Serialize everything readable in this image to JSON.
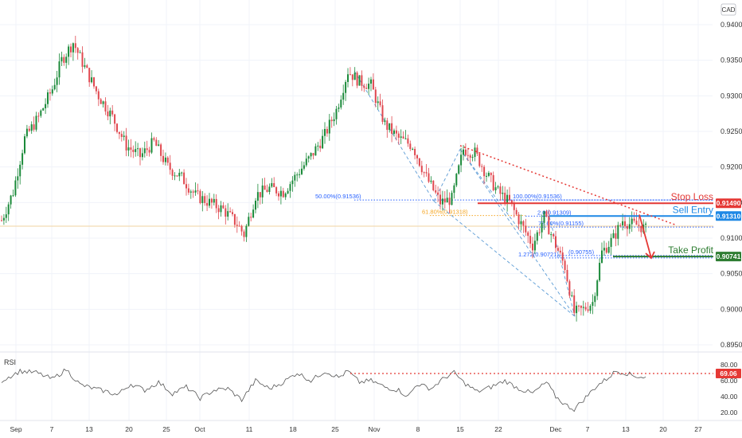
{
  "chart_data": {
    "type": "candlestick",
    "currency": "CAD",
    "ylim": [
      0.895,
      0.942
    ],
    "y_ticks": [
      "0.94000",
      "0.93500",
      "0.93000",
      "0.92500",
      "0.92000",
      "0.91500",
      "0.91000",
      "0.90500",
      "0.90000",
      "0.89500"
    ],
    "x_ticks": [
      "Sep",
      "7",
      "13",
      "20",
      "25",
      "Oct",
      "11",
      "18",
      "25",
      "Nov",
      "8",
      "15",
      "22",
      "Dec",
      "7",
      "13",
      "20",
      "27"
    ],
    "price_path": [
      [
        0,
        0.9125
      ],
      [
        5,
        0.9165
      ],
      [
        10,
        0.924
      ],
      [
        16,
        0.927
      ],
      [
        22,
        0.931
      ],
      [
        26,
        0.935
      ],
      [
        31,
        0.9375
      ],
      [
        36,
        0.934
      ],
      [
        42,
        0.93
      ],
      [
        48,
        0.927
      ],
      [
        54,
        0.923
      ],
      [
        60,
        0.9215
      ],
      [
        66,
        0.9235
      ],
      [
        72,
        0.92
      ],
      [
        78,
        0.9185
      ],
      [
        84,
        0.916
      ],
      [
        90,
        0.915
      ],
      [
        96,
        0.914
      ],
      [
        102,
        0.912
      ],
      [
        105,
        0.9105
      ],
      [
        110,
        0.916
      ],
      [
        116,
        0.917
      ],
      [
        122,
        0.9165
      ],
      [
        128,
        0.919
      ],
      [
        134,
        0.9215
      ],
      [
        140,
        0.9245
      ],
      [
        145,
        0.928
      ],
      [
        150,
        0.9335
      ],
      [
        155,
        0.932
      ],
      [
        160,
        0.9315
      ],
      [
        166,
        0.926
      ],
      [
        172,
        0.924
      ],
      [
        178,
        0.923
      ],
      [
        184,
        0.9185
      ],
      [
        190,
        0.915
      ],
      [
        195,
        0.9155
      ],
      [
        200,
        0.9225
      ],
      [
        205,
        0.922
      ],
      [
        210,
        0.919
      ],
      [
        215,
        0.9165
      ],
      [
        220,
        0.915
      ],
      [
        225,
        0.912
      ],
      [
        230,
        0.909
      ],
      [
        235,
        0.913
      ],
      [
        240,
        0.909
      ],
      [
        244,
        0.906
      ],
      [
        248,
        0.8995
      ],
      [
        252,
        0.9
      ],
      [
        256,
        0.901
      ],
      [
        260,
        0.908
      ],
      [
        265,
        0.91
      ],
      [
        269,
        0.9125
      ],
      [
        272,
        0.912
      ],
      [
        276,
        0.9118
      ],
      [
        279,
        0.9112
      ]
    ],
    "rsi": {
      "label": "RSI",
      "ylim": [
        10,
        90
      ],
      "ticks": [
        "80.00",
        "60.00",
        "40.00",
        "20.00"
      ],
      "current": "69.06",
      "path": [
        [
          0,
          60
        ],
        [
          8,
          72
        ],
        [
          15,
          70
        ],
        [
          22,
          62
        ],
        [
          28,
          74
        ],
        [
          34,
          55
        ],
        [
          40,
          50
        ],
        [
          46,
          46
        ],
        [
          50,
          42
        ],
        [
          56,
          56
        ],
        [
          62,
          48
        ],
        [
          68,
          58
        ],
        [
          74,
          44
        ],
        [
          80,
          52
        ],
        [
          86,
          38
        ],
        [
          92,
          48
        ],
        [
          98,
          50
        ],
        [
          104,
          36
        ],
        [
          110,
          60
        ],
        [
          116,
          50
        ],
        [
          122,
          58
        ],
        [
          128,
          70
        ],
        [
          134,
          60
        ],
        [
          140,
          72
        ],
        [
          146,
          64
        ],
        [
          150,
          72
        ],
        [
          155,
          58
        ],
        [
          160,
          60
        ],
        [
          166,
          52
        ],
        [
          172,
          48
        ],
        [
          176,
          40
        ],
        [
          180,
          56
        ],
        [
          186,
          50
        ],
        [
          192,
          64
        ],
        [
          196,
          70
        ],
        [
          200,
          58
        ],
        [
          206,
          46
        ],
        [
          212,
          52
        ],
        [
          218,
          60
        ],
        [
          224,
          50
        ],
        [
          230,
          44
        ],
        [
          236,
          58
        ],
        [
          240,
          40
        ],
        [
          244,
          30
        ],
        [
          248,
          24
        ],
        [
          252,
          36
        ],
        [
          258,
          54
        ],
        [
          262,
          62
        ],
        [
          266,
          72
        ],
        [
          270,
          70
        ],
        [
          274,
          66
        ],
        [
          279,
          64
        ]
      ]
    },
    "fib_labels": [
      {
        "text": "50.00%(0.91536)",
        "value": 0.91536,
        "color": "#2962ff"
      },
      {
        "text": "61.80%(0.91318)",
        "value": 0.91318,
        "color": "#f5a623"
      },
      {
        "text": "100.00%(0.91536)",
        "value": 0.91536,
        "color": "#2962ff"
      },
      {
        "text": "78.60%(0.91155)",
        "value": 0.91155,
        "color": "#2962ff"
      },
      {
        "text": "2.0(0.91309)",
        "value": 0.91309,
        "color": "#2962ff"
      },
      {
        "text": "1.272(0.90721)",
        "value": 0.90721,
        "color": "#2962ff"
      },
      {
        "text": "(0.90755)",
        "value": 0.90755,
        "color": "#2962ff"
      }
    ],
    "levels": [
      {
        "name": "Stop Loss",
        "value": 0.9149,
        "label": "0.91490",
        "color": "#e53935"
      },
      {
        "name": "Sell Entry",
        "value": 0.9131,
        "label": "0.91310",
        "color": "#1e88e5"
      },
      {
        "name": "Take Profit",
        "value": 0.90741,
        "label": "0.90741",
        "color": "#2e7d32"
      }
    ],
    "title": "",
    "xlabel": "",
    "ylabel": ""
  }
}
